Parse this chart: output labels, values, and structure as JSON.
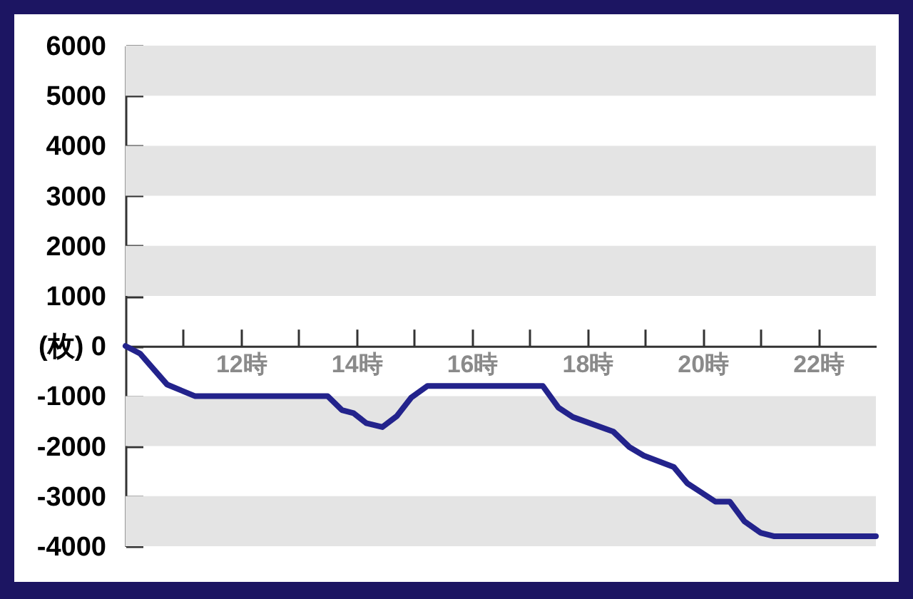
{
  "chart_data": {
    "type": "line",
    "x": [
      10,
      10.25,
      10.72,
      11.2,
      13.5,
      13.75,
      13.95,
      14.17,
      14.45,
      14.7,
      14.95,
      15.23,
      17.23,
      17.5,
      17.75,
      18.45,
      18.73,
      18.98,
      19.5,
      19.73,
      20.22,
      20.47,
      20.72,
      21,
      21.23,
      23
    ],
    "series": [
      {
        "color": "#23238c",
        "values": [
          0,
          -150,
          -770,
          -1000,
          -1000,
          -1280,
          -1340,
          -1540,
          -1620,
          -1400,
          -1030,
          -800,
          -800,
          -1230,
          -1420,
          -1710,
          -2020,
          -2190,
          -2420,
          -2740,
          -3110,
          -3110,
          -3500,
          -3730,
          -3800,
          -3800
        ]
      }
    ],
    "xlim": [
      10,
      23
    ],
    "xticks": [
      {
        "value": 11,
        "label": null
      },
      {
        "value": 12,
        "label": "12時"
      },
      {
        "value": 13,
        "label": null
      },
      {
        "value": 14,
        "label": "14時"
      },
      {
        "value": 15,
        "label": null
      },
      {
        "value": 16,
        "label": "16時"
      },
      {
        "value": 17,
        "label": null
      },
      {
        "value": 18,
        "label": "18時"
      },
      {
        "value": 19,
        "label": null
      },
      {
        "value": 20,
        "label": "20時"
      },
      {
        "value": 21,
        "label": null
      },
      {
        "value": 22,
        "label": "22時"
      }
    ],
    "ylim": [
      -4000,
      6000
    ],
    "yticks": [
      -4000,
      -3000,
      -2000,
      -1000,
      {
        "value": 0,
        "label": "(枚) 0"
      },
      1000,
      2000,
      3000,
      4000,
      5000,
      6000
    ],
    "bands": [
      {
        "axis": "y",
        "from": 5000,
        "to": 6000,
        "color": "#e4e4e4"
      },
      {
        "axis": "y",
        "from": 3000,
        "to": 4000,
        "color": "#e4e4e4"
      },
      {
        "axis": "y",
        "from": 1000,
        "to": 2000,
        "color": "#e4e4e4"
      },
      {
        "axis": "y",
        "from": -2000,
        "to": -1000,
        "color": "#e4e4e4"
      },
      {
        "axis": "y",
        "from": -4000,
        "to": -3000,
        "color": "#e4e4e4"
      }
    ],
    "marker": "none",
    "line_style": "solid"
  }
}
